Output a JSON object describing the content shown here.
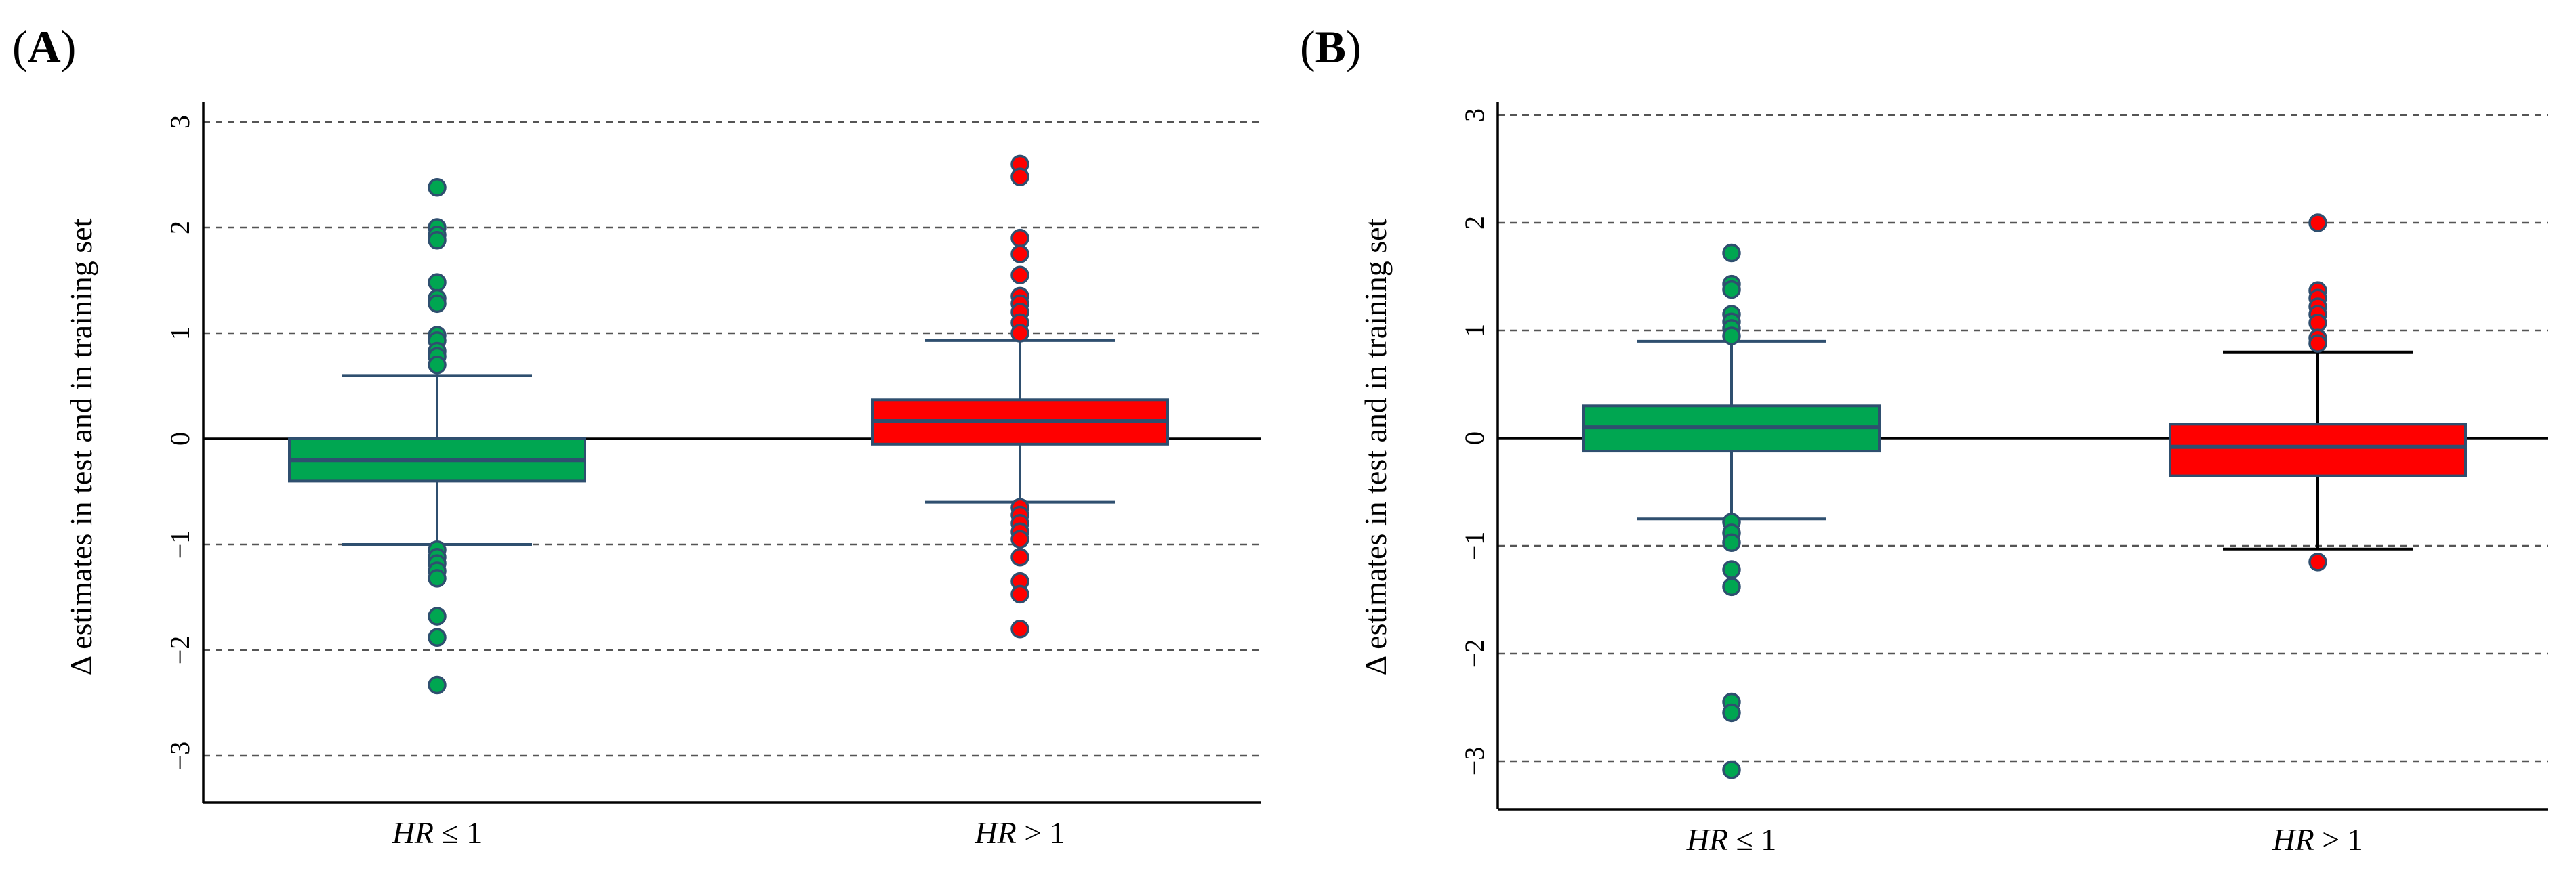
{
  "chart_data": [
    {
      "type": "box",
      "panel_label": "(A)",
      "ylabel": "Δ estimates  in test and in training set",
      "ylim": [
        -3.5,
        3.3
      ],
      "yticks": [
        3,
        2,
        1,
        0,
        -1,
        -2,
        -3
      ],
      "ytick_labels": [
        "3",
        "2",
        "1",
        "0",
        "−1",
        "−2",
        "−3"
      ],
      "grid": "dashed horizontal at integer ticks",
      "zero_line": true,
      "categories": [
        {
          "label_italic": "HR",
          "label_rest": " ≤ 1",
          "color": "#00a651",
          "whisker_color": "#2f4f6f",
          "stats": {
            "whisker_low": -1.0,
            "q1": -0.4,
            "median": -0.2,
            "q3": 0.0,
            "whisker_high": 0.6
          },
          "outliers": [
            2.38,
            2.0,
            1.93,
            1.88,
            1.48,
            1.33,
            1.28,
            0.98,
            0.93,
            0.83,
            0.78,
            0.7,
            -1.05,
            -1.12,
            -1.18,
            -1.25,
            -1.32,
            -1.68,
            -1.88,
            -2.33
          ]
        },
        {
          "label_italic": "HR",
          "label_rest": " >  1",
          "color": "#ff0000",
          "whisker_color": "#2f4f6f",
          "stats": {
            "whisker_low": -0.6,
            "q1": -0.05,
            "median": 0.17,
            "q3": 0.37,
            "whisker_high": 0.93
          },
          "outliers": [
            2.6,
            2.48,
            1.9,
            1.75,
            1.55,
            1.35,
            1.28,
            1.2,
            1.1,
            1.0,
            -0.65,
            -0.72,
            -0.8,
            -0.88,
            -0.95,
            -1.12,
            -1.35,
            -1.47,
            -1.8
          ]
        }
      ]
    },
    {
      "type": "box",
      "panel_label": "(B)",
      "ylabel": "Δ estimates  in test and in training set",
      "ylim": [
        -3.5,
        3.3
      ],
      "yticks": [
        3,
        2,
        1,
        0,
        -1,
        -2,
        -3
      ],
      "ytick_labels": [
        "3",
        "2",
        "1",
        "0",
        "−1",
        "−2",
        "−3"
      ],
      "grid": "dashed horizontal at integer ticks",
      "zero_line": true,
      "categories": [
        {
          "label_italic": "HR",
          "label_rest": " ≤ 1",
          "color": "#00a651",
          "whisker_color": "#2f4f6f",
          "stats": {
            "whisker_low": -0.75,
            "q1": -0.12,
            "median": 0.1,
            "q3": 0.3,
            "whisker_high": 0.9
          },
          "outliers": [
            1.72,
            1.43,
            1.38,
            1.15,
            1.08,
            1.02,
            0.95,
            -0.78,
            -0.88,
            -0.97,
            -1.22,
            -1.38,
            -2.45,
            -2.55,
            -3.08
          ]
        },
        {
          "label_italic": "HR",
          "label_rest": " >  1",
          "color": "#ff0000",
          "whisker_color": "#000000",
          "stats": {
            "whisker_low": -1.03,
            "q1": -0.35,
            "median": -0.08,
            "q3": 0.13,
            "whisker_high": 0.8
          },
          "outliers": [
            2.0,
            1.37,
            1.3,
            1.22,
            1.15,
            1.07,
            0.93,
            0.88,
            -1.15
          ]
        }
      ]
    }
  ]
}
